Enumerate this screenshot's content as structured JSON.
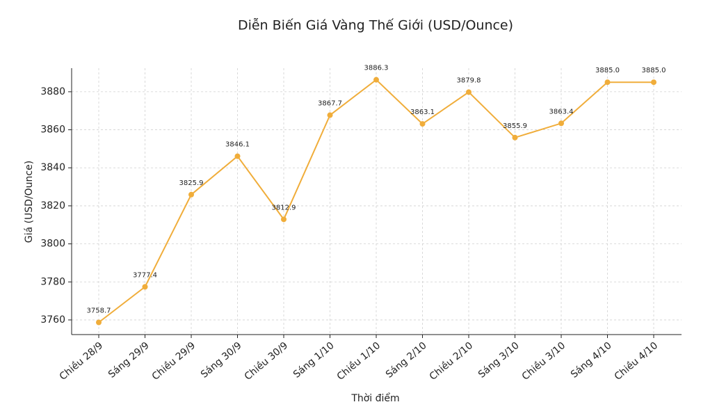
{
  "chart_data": {
    "type": "line",
    "title": "Diễn Biến Giá Vàng Thế Giới (USD/Ounce)",
    "x_label": "Thời điểm",
    "y_label": "Giá (USD/Ounce)",
    "categories": [
      "Chiều 28/9",
      "Sáng 29/9",
      "Chiều 29/9",
      "Sáng 30/9",
      "Chiều 30/9",
      "Sáng 1/10",
      "Chiều 1/10",
      "Sáng 2/10",
      "Chiều 2/10",
      "Sáng 3/10",
      "Chiều 3/10",
      "Sáng 4/10",
      "Chiều 4/10"
    ],
    "values": [
      3758.7,
      3777.4,
      3825.9,
      3846.1,
      3812.9,
      3867.7,
      3886.3,
      3863.1,
      3879.8,
      3855.9,
      3863.4,
      3885.0,
      3885.0
    ],
    "value_labels": [
      "3758.7",
      "3777.4",
      "3825.9",
      "3846.1",
      "3812.9",
      "3867.7",
      "3886.3",
      "3863.1",
      "3879.8",
      "3855.9",
      "3863.4",
      "3885.0",
      "3885.0"
    ],
    "color": "#f0ad3a",
    "ylim": [
      3752.3,
      3892.4
    ],
    "yticks": [
      3760,
      3780,
      3800,
      3820,
      3840,
      3860,
      3880
    ],
    "grid": true
  }
}
